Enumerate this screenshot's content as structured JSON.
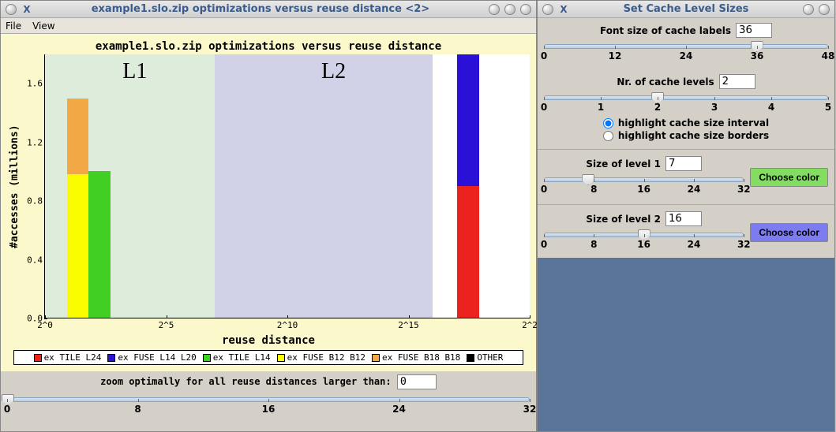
{
  "left_window": {
    "title": "example1.slo.zip optimizations versus reuse distance <2>",
    "menu": {
      "file": "File",
      "view": "View"
    }
  },
  "chart": {
    "title": "example1.slo.zip optimizations versus reuse distance",
    "ylabel": "#accesses (millions)",
    "xlabel": "reuse distance",
    "ylim": [
      0.0,
      1.8
    ],
    "yticks": [
      0.0,
      0.4,
      0.8,
      1.2,
      1.6
    ],
    "xticks": [
      "2^0",
      "2^5",
      "2^10",
      "2^15",
      "2^2"
    ],
    "xtick_pos_pct": [
      0,
      25,
      50,
      75,
      100
    ],
    "bg_color": "#fbf8cc",
    "cache_regions": [
      {
        "label": "L1",
        "left_pct": 0,
        "width_pct": 35,
        "color": "#deeddb",
        "label_left_pct": 16
      },
      {
        "label": "L2",
        "left_pct": 35,
        "width_pct": 45,
        "color": "#d1d1e8",
        "label_left_pct": 57
      }
    ],
    "bars": [
      {
        "left_pct": 4.5,
        "width_pct": 4.5,
        "segments": [
          {
            "h": 0.98,
            "color": "#fafc00"
          },
          {
            "h": 0.52,
            "color": "#f2a945"
          }
        ]
      },
      {
        "left_pct": 9.0,
        "width_pct": 4.5,
        "segments": [
          {
            "h": 1.0,
            "color": "#41cf23"
          }
        ]
      },
      {
        "left_pct": 85.0,
        "width_pct": 4.5,
        "segments": [
          {
            "h": 0.9,
            "color": "#eb221e"
          },
          {
            "h": 0.9,
            "color": "#2b10d8"
          }
        ]
      }
    ],
    "legend": [
      {
        "color": "#eb221e",
        "label": "ex TILE L24"
      },
      {
        "color": "#2b10d8",
        "label": "ex FUSE L14 L20"
      },
      {
        "color": "#41cf23",
        "label": "ex TILE L14"
      },
      {
        "color": "#fafc00",
        "label": "ex FUSE B12 B12"
      },
      {
        "color": "#f2a945",
        "label": "ex FUSE B18 B18"
      },
      {
        "color": "#000000",
        "label": "OTHER"
      }
    ]
  },
  "zoom": {
    "label": "zoom optimally for all reuse distances larger than:",
    "value": "0",
    "ticks": [
      "0",
      "8",
      "16",
      "24",
      "32"
    ],
    "thumb_pct": 0
  },
  "right_window": {
    "title": "Set Cache Level Sizes",
    "font_size": {
      "label": "Font size of cache labels",
      "value": "36",
      "ticks": [
        "0",
        "12",
        "24",
        "36",
        "48"
      ],
      "thumb_pct": 75
    },
    "nr_levels": {
      "label": "Nr. of cache levels",
      "value": "2",
      "ticks": [
        "0",
        "1",
        "2",
        "3",
        "4",
        "5"
      ],
      "thumb_pct": 40
    },
    "radio": {
      "opt1": "highlight cache size interval",
      "opt2": "highlight cache size borders",
      "selected": 1
    },
    "level1": {
      "label": "Size of level 1",
      "value": "7",
      "ticks": [
        "0",
        "8",
        "16",
        "24",
        "32"
      ],
      "thumb_pct": 22,
      "btn": "Choose color",
      "btn_color": "#82dd60"
    },
    "level2": {
      "label": "Size of level 2",
      "value": "16",
      "ticks": [
        "0",
        "8",
        "16",
        "24",
        "32"
      ],
      "thumb_pct": 50,
      "btn": "Choose color",
      "btn_color": "#7c7cf0"
    }
  }
}
